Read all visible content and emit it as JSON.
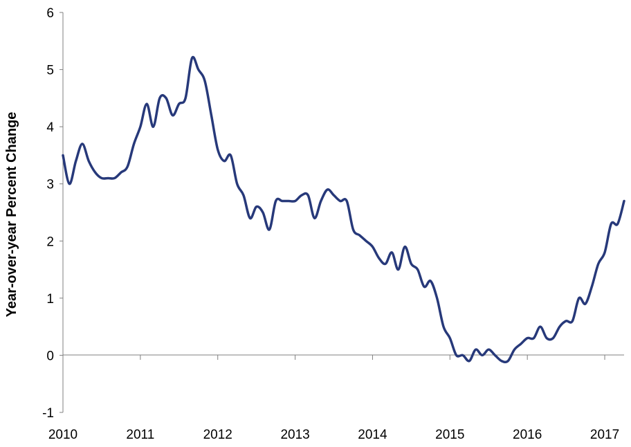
{
  "chart_data": {
    "type": "line",
    "title": "",
    "xlabel": "",
    "ylabel": "Year-over-year  Percent Change",
    "ylim": [
      -1,
      6
    ],
    "xlim": [
      2010.0,
      2017.25
    ],
    "yticks": [
      -1,
      0,
      1,
      2,
      3,
      4,
      5,
      6
    ],
    "xticks": [
      2010,
      2011,
      2012,
      2013,
      2014,
      2015,
      2016,
      2017
    ],
    "grid": false,
    "legend": "none",
    "series": [
      {
        "color": "#27397a",
        "x": [
          2010.0,
          2010.083,
          2010.167,
          2010.25,
          2010.333,
          2010.417,
          2010.5,
          2010.583,
          2010.667,
          2010.75,
          2010.833,
          2010.917,
          2011.0,
          2011.083,
          2011.167,
          2011.25,
          2011.333,
          2011.417,
          2011.5,
          2011.583,
          2011.667,
          2011.75,
          2011.833,
          2011.917,
          2012.0,
          2012.083,
          2012.167,
          2012.25,
          2012.333,
          2012.417,
          2012.5,
          2012.583,
          2012.667,
          2012.75,
          2012.833,
          2012.917,
          2013.0,
          2013.083,
          2013.167,
          2013.25,
          2013.333,
          2013.417,
          2013.5,
          2013.583,
          2013.667,
          2013.75,
          2013.833,
          2013.917,
          2014.0,
          2014.083,
          2014.167,
          2014.25,
          2014.333,
          2014.417,
          2014.5,
          2014.583,
          2014.667,
          2014.75,
          2014.833,
          2014.917,
          2015.0,
          2015.083,
          2015.167,
          2015.25,
          2015.333,
          2015.417,
          2015.5,
          2015.583,
          2015.667,
          2015.75,
          2015.833,
          2015.917,
          2016.0,
          2016.083,
          2016.167,
          2016.25,
          2016.333,
          2016.417,
          2016.5,
          2016.583,
          2016.667,
          2016.75,
          2016.833,
          2016.917,
          2017.0,
          2017.083,
          2017.167,
          2017.25
        ],
        "values": [
          3.5,
          3.0,
          3.4,
          3.7,
          3.4,
          3.2,
          3.1,
          3.1,
          3.1,
          3.2,
          3.3,
          3.7,
          4.0,
          4.4,
          4.0,
          4.5,
          4.5,
          4.2,
          4.4,
          4.5,
          5.2,
          5.0,
          4.8,
          4.2,
          3.6,
          3.4,
          3.5,
          3.0,
          2.8,
          2.4,
          2.6,
          2.5,
          2.2,
          2.7,
          2.7,
          2.7,
          2.7,
          2.8,
          2.8,
          2.4,
          2.7,
          2.9,
          2.8,
          2.7,
          2.7,
          2.2,
          2.1,
          2.0,
          1.9,
          1.7,
          1.6,
          1.8,
          1.5,
          1.9,
          1.6,
          1.5,
          1.2,
          1.3,
          1.0,
          0.5,
          0.3,
          0.0,
          0.0,
          -0.1,
          0.1,
          0.0,
          0.1,
          0.0,
          -0.1,
          -0.1,
          0.1,
          0.2,
          0.3,
          0.3,
          0.5,
          0.3,
          0.3,
          0.5,
          0.6,
          0.6,
          1.0,
          0.9,
          1.2,
          1.6,
          1.8,
          2.3,
          2.3,
          2.7
        ]
      }
    ]
  }
}
